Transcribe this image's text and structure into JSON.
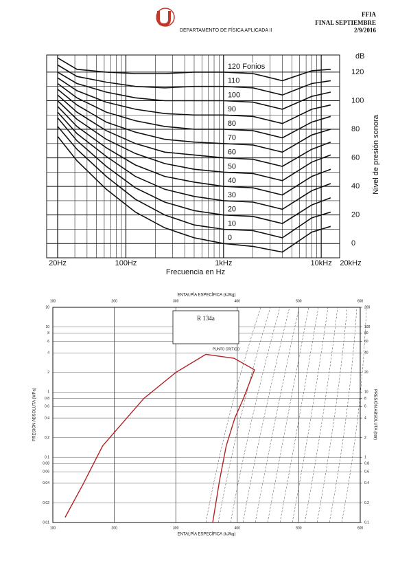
{
  "header": {
    "department": "DEPARTAMENTO DE FÍSICA APLICADA II",
    "course": "FFIA",
    "exam": "FINAL SEPTIEMBRE",
    "date": "2/9/2016"
  },
  "chart_data": [
    {
      "type": "line",
      "x_scale": "log",
      "color": "#111111",
      "x": [
        20,
        31.5,
        63,
        125,
        250,
        500,
        1000,
        2000,
        4000,
        8000,
        12500
      ],
      "xlim": [
        20,
        20000
      ],
      "xticks": [
        {
          "value": 20,
          "label": "20Hz"
        },
        {
          "value": 100,
          "label": "100Hz"
        },
        {
          "value": 1000,
          "label": "1kHz"
        },
        {
          "value": 10000,
          "label": "10kHz"
        },
        {
          "value": 20000,
          "label": "20kHz"
        }
      ],
      "minor_xgrid": [
        30,
        40,
        50,
        60,
        70,
        80,
        90,
        200,
        300,
        400,
        500,
        600,
        700,
        800,
        900,
        2000,
        3000,
        4000,
        5000,
        6000,
        7000,
        8000,
        9000
      ],
      "ylim": [
        -10,
        132
      ],
      "yticks": [
        0,
        20,
        40,
        60,
        80,
        100,
        120
      ],
      "minor_ygrid": [
        -10,
        10,
        30,
        50,
        70,
        90,
        110
      ],
      "y_unit": "dB",
      "ylabel": "Nivel de presión sonora",
      "xlabel": "Frecuencia en Hz",
      "series": [
        {
          "name": "120 Fonios",
          "values": [
            130,
            122,
            120,
            119,
            119,
            120,
            120,
            119,
            114,
            121,
            122
          ]
        },
        {
          "name": "110",
          "values": [
            125,
            117,
            113,
            110,
            109,
            110,
            110,
            109,
            104,
            112,
            114
          ]
        },
        {
          "name": "100",
          "values": [
            120,
            112,
            106,
            102,
            100,
            100,
            100,
            99,
            94,
            103,
            106
          ]
        },
        {
          "name": "90",
          "values": [
            116,
            107,
            99,
            94,
            91,
            90,
            90,
            89,
            84,
            94,
            97
          ]
        },
        {
          "name": "80",
          "values": [
            112,
            102,
            92,
            86,
            82,
            80,
            80,
            79,
            74,
            85,
            89
          ]
        },
        {
          "name": "70",
          "values": [
            108,
            97,
            85,
            78,
            73,
            71,
            70,
            69,
            64,
            76,
            80
          ]
        },
        {
          "name": "60",
          "values": [
            104,
            92,
            79,
            70,
            64,
            62,
            60,
            59,
            54,
            66,
            71
          ]
        },
        {
          "name": "50",
          "values": [
            100,
            87,
            73,
            63,
            56,
            52,
            50,
            49,
            44,
            57,
            62
          ]
        },
        {
          "name": "40",
          "values": [
            96,
            82,
            67,
            55,
            47,
            43,
            40,
            39,
            34,
            47,
            52
          ]
        },
        {
          "name": "30",
          "values": [
            92,
            77,
            61,
            47,
            38,
            33,
            30,
            29,
            24,
            37,
            42
          ]
        },
        {
          "name": "20",
          "values": [
            88,
            72,
            54,
            39,
            29,
            23,
            20,
            19,
            14,
            27,
            32
          ]
        },
        {
          "name": "10",
          "values": [
            82,
            66,
            47,
            31,
            20,
            13,
            10,
            9,
            4,
            18,
            22
          ]
        },
        {
          "name": "0",
          "values": [
            75,
            58,
            38,
            22,
            11,
            4,
            0,
            -2,
            -6,
            8,
            12
          ]
        }
      ]
    },
    {
      "type": "line",
      "y_scale": "log",
      "title_top": "ENTALPÍA ESPECÍFICA (kJ/kg)",
      "title_bottom": "ENTALPÍA ESPECÍFICA (kJ/kg)",
      "ylabel": "PRESIÓN ABSOLUTA (MPa)",
      "y2label": "PRESIÓN ABSOLUTA (bar)",
      "fluid": "R 134a",
      "annotation": "PUNTO CRÍTICO",
      "xlim": [
        100,
        600
      ],
      "xticks": [
        100,
        200,
        300,
        400,
        500,
        600
      ],
      "ylim": [
        0.01,
        20
      ],
      "yticks": [
        0.01,
        0.02,
        0.04,
        0.06,
        0.08,
        0.1,
        0.2,
        0.4,
        0.6,
        0.8,
        1,
        2,
        4,
        6,
        8,
        10,
        20
      ],
      "y2lim": [
        0.1,
        200
      ],
      "y2ticks": [
        0.1,
        0.2,
        0.4,
        0.6,
        0.8,
        1,
        2,
        4,
        6,
        8,
        10,
        20,
        40,
        60,
        80,
        100,
        200
      ],
      "series": [
        {
          "color": "#b22222",
          "x": [
            120,
            150,
            181,
            215,
            248,
            300,
            349
          ],
          "values": [
            0.012,
            0.04,
            0.15,
            0.35,
            0.8,
            2,
            3.8
          ]
        },
        {
          "color": "#b22222",
          "x": [
            349,
            395,
            428,
            420,
            410,
            396,
            382,
            371,
            360
          ],
          "values": [
            3.8,
            3.3,
            2.2,
            1.4,
            0.8,
            0.4,
            0.15,
            0.043,
            0.01
          ]
        }
      ]
    }
  ]
}
